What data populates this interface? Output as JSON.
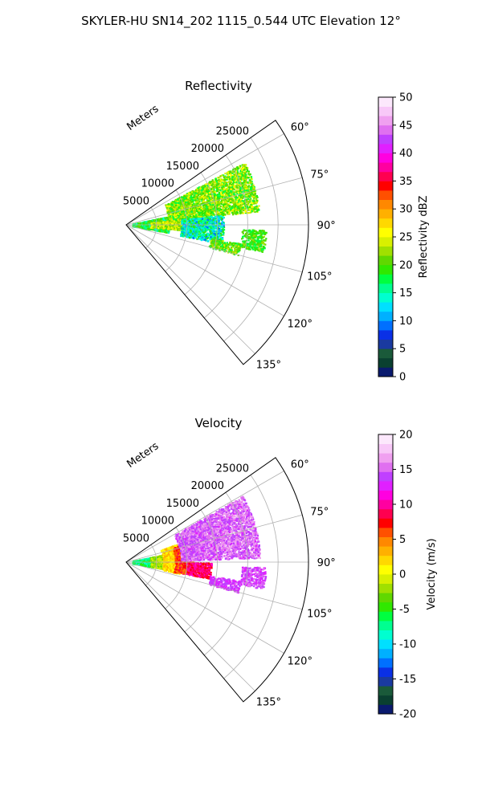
{
  "figure": {
    "suptitle": "SKYLER-HU  SN14_202  1115_0.544 UTC Elevation 12°"
  },
  "chart_data": [
    {
      "type": "heatmap",
      "title": "Reflectivity",
      "projection": "polar-sector",
      "radial_axis_label": "Meters",
      "radial_ticks": [
        5000,
        10000,
        15000,
        20000,
        25000
      ],
      "radial_range": [
        0,
        30000
      ],
      "azimuth_ticks": [
        "60°",
        "75°",
        "90°",
        "105°",
        "120°",
        "135°"
      ],
      "azimuth_range_deg": [
        55,
        140
      ],
      "grid": true,
      "colorbar": {
        "label": "Reflectivity dBZ",
        "range": [
          0,
          50
        ],
        "ticks": [
          0,
          5,
          10,
          15,
          20,
          25,
          30,
          35,
          40,
          45,
          50
        ],
        "colors": [
          "#0a1a6e",
          "#0a4030",
          "#1a5a3a",
          "#1a3aa0",
          "#0a30e6",
          "#0070ff",
          "#00b0ff",
          "#00e0ff",
          "#00ffd0",
          "#00ff90",
          "#00ff40",
          "#30e800",
          "#60d800",
          "#a0e000",
          "#d8f000",
          "#ffff00",
          "#ffd800",
          "#ffb000",
          "#ff8800",
          "#ff5000",
          "#ff0000",
          "#ff0050",
          "#ff00a0",
          "#ff00e0",
          "#e020ff",
          "#c040ff",
          "#e070f0",
          "#f0a0f0",
          "#f8c8f8",
          "#fce8fc"
        ]
      },
      "echo_regions": [
        {
          "r": [
            1000,
            7000
          ],
          "az": [
            78,
            100
          ],
          "value_range": [
            14,
            22
          ]
        },
        {
          "r": [
            4000,
            13000
          ],
          "az": [
            84,
            95
          ],
          "value_range": [
            20,
            27
          ]
        },
        {
          "r": [
            7000,
            22000
          ],
          "az": [
            62,
            84
          ],
          "value_range": [
            17,
            26
          ]
        },
        {
          "r": [
            9000,
            16000
          ],
          "az": [
            84,
            101
          ],
          "value_range": [
            9,
            20
          ]
        },
        {
          "r": [
            14000,
            19000
          ],
          "az": [
            99,
            105
          ],
          "value_range": [
            17,
            24
          ]
        },
        {
          "r": [
            19000,
            23000
          ],
          "az": [
            92,
            101
          ],
          "value_range": [
            17,
            22
          ]
        }
      ]
    },
    {
      "type": "heatmap",
      "title": "Velocity",
      "projection": "polar-sector",
      "radial_axis_label": "Meters",
      "radial_ticks": [
        5000,
        10000,
        15000,
        20000,
        25000
      ],
      "radial_range": [
        0,
        30000
      ],
      "azimuth_ticks": [
        "60°",
        "75°",
        "90°",
        "105°",
        "120°",
        "135°"
      ],
      "azimuth_range_deg": [
        55,
        140
      ],
      "grid": true,
      "colorbar": {
        "label": "Velocity (m/s)",
        "range": [
          -20,
          20
        ],
        "ticks": [
          -20,
          -15,
          -10,
          -5,
          0,
          5,
          10,
          15,
          20
        ],
        "colors": [
          "#0a1a6e",
          "#0a4030",
          "#1a5a3a",
          "#1a3aa0",
          "#0a30e6",
          "#0070ff",
          "#00b0ff",
          "#00e0ff",
          "#00ffd0",
          "#00ff90",
          "#00ff40",
          "#30e800",
          "#60d800",
          "#a0e000",
          "#d8f000",
          "#ffff00",
          "#ffd800",
          "#ffb000",
          "#ff8800",
          "#ff5000",
          "#ff0000",
          "#ff0050",
          "#ff00a0",
          "#ff00e0",
          "#e020ff",
          "#c040ff",
          "#e070f0",
          "#f0a0f0",
          "#f8c8f8",
          "#fce8fc"
        ]
      },
      "echo_regions": [
        {
          "r": [
            1000,
            4500
          ],
          "az": [
            78,
            100
          ],
          "value_range": [
            -9,
            -4
          ]
        },
        {
          "r": [
            4000,
            7000
          ],
          "az": [
            78,
            100
          ],
          "value_range": [
            -4,
            0
          ]
        },
        {
          "r": [
            6000,
            9000
          ],
          "az": [
            70,
            102
          ],
          "value_range": [
            0,
            4
          ]
        },
        {
          "r": [
            8000,
            11000
          ],
          "az": [
            72,
            101
          ],
          "value_range": [
            4,
            9
          ]
        },
        {
          "r": [
            9000,
            22000
          ],
          "az": [
            60,
            88
          ],
          "value_range": [
            13,
            17
          ]
        },
        {
          "r": [
            10000,
            14000
          ],
          "az": [
            90,
            101
          ],
          "value_range": [
            7,
            11
          ]
        },
        {
          "r": [
            14000,
            19000
          ],
          "az": [
            99,
            105
          ],
          "value_range": [
            12,
            15
          ]
        },
        {
          "r": [
            19000,
            23000
          ],
          "az": [
            92,
            101
          ],
          "value_range": [
            12,
            16
          ]
        }
      ]
    }
  ]
}
